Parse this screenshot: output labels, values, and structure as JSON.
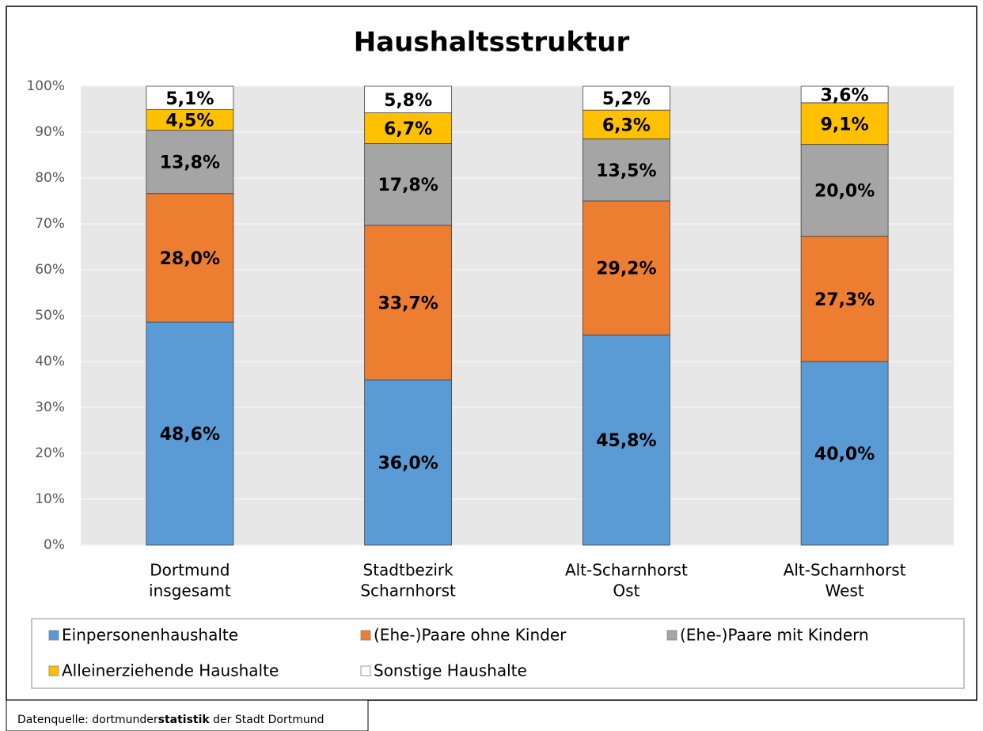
{
  "chart_data": {
    "type": "stacked_bar",
    "title": "Haushaltsstruktur",
    "categories": [
      [
        "Dortmund",
        "insgesamt"
      ],
      [
        "Stadtbezirk",
        "Scharnhorst"
      ],
      [
        "Alt-Scharnhorst",
        "Ost"
      ],
      [
        "Alt-Scharnhorst",
        "West"
      ]
    ],
    "series": [
      {
        "name": "Einpersonenhaushalte",
        "color": "#5b9bd5",
        "values": [
          48.6,
          36.0,
          45.8,
          40.0
        ],
        "value_labels": [
          "48,6%",
          "36,0%",
          "45,8%",
          "40,0%"
        ]
      },
      {
        "name": "(Ehe-)Paare ohne Kinder",
        "color": "#ed7d31",
        "values": [
          28.0,
          33.7,
          29.2,
          27.3
        ],
        "value_labels": [
          "28,0%",
          "33,7%",
          "29,2%",
          "27,3%"
        ]
      },
      {
        "name": "(Ehe-)Paare mit Kindern",
        "color": "#a5a5a5",
        "values": [
          13.8,
          17.8,
          13.5,
          20.0
        ],
        "value_labels": [
          "13,8%",
          "17,8%",
          "13,5%",
          "20,0%"
        ]
      },
      {
        "name": "Alleinerziehende Haushalte",
        "color": "#ffc000",
        "values": [
          4.5,
          6.7,
          6.3,
          9.1
        ],
        "value_labels": [
          "4,5%",
          "6,7%",
          "6,3%",
          "9,1%"
        ]
      },
      {
        "name": "Sonstige Haushalte",
        "color": "#ffffff",
        "values": [
          5.1,
          5.8,
          5.2,
          3.6
        ],
        "value_labels": [
          "5,1%",
          "5,8%",
          "5,2%",
          "3,6%"
        ]
      }
    ],
    "ylim": [
      0,
      100
    ],
    "yticks": [
      {
        "value": 0,
        "label": "0%"
      },
      {
        "value": 10,
        "label": "10%"
      },
      {
        "value": 20,
        "label": "20%"
      },
      {
        "value": 30,
        "label": "30%"
      },
      {
        "value": 40,
        "label": "40%"
      },
      {
        "value": 50,
        "label": "50%"
      },
      {
        "value": 60,
        "label": "60%"
      },
      {
        "value": 70,
        "label": "70%"
      },
      {
        "value": 80,
        "label": "80%"
      },
      {
        "value": 90,
        "label": "90%"
      },
      {
        "value": 100,
        "label": "100%"
      }
    ],
    "grid": true,
    "source": [
      "Datenquelle: dortmunder",
      "statistik",
      " der Stadt Dortmund"
    ]
  }
}
